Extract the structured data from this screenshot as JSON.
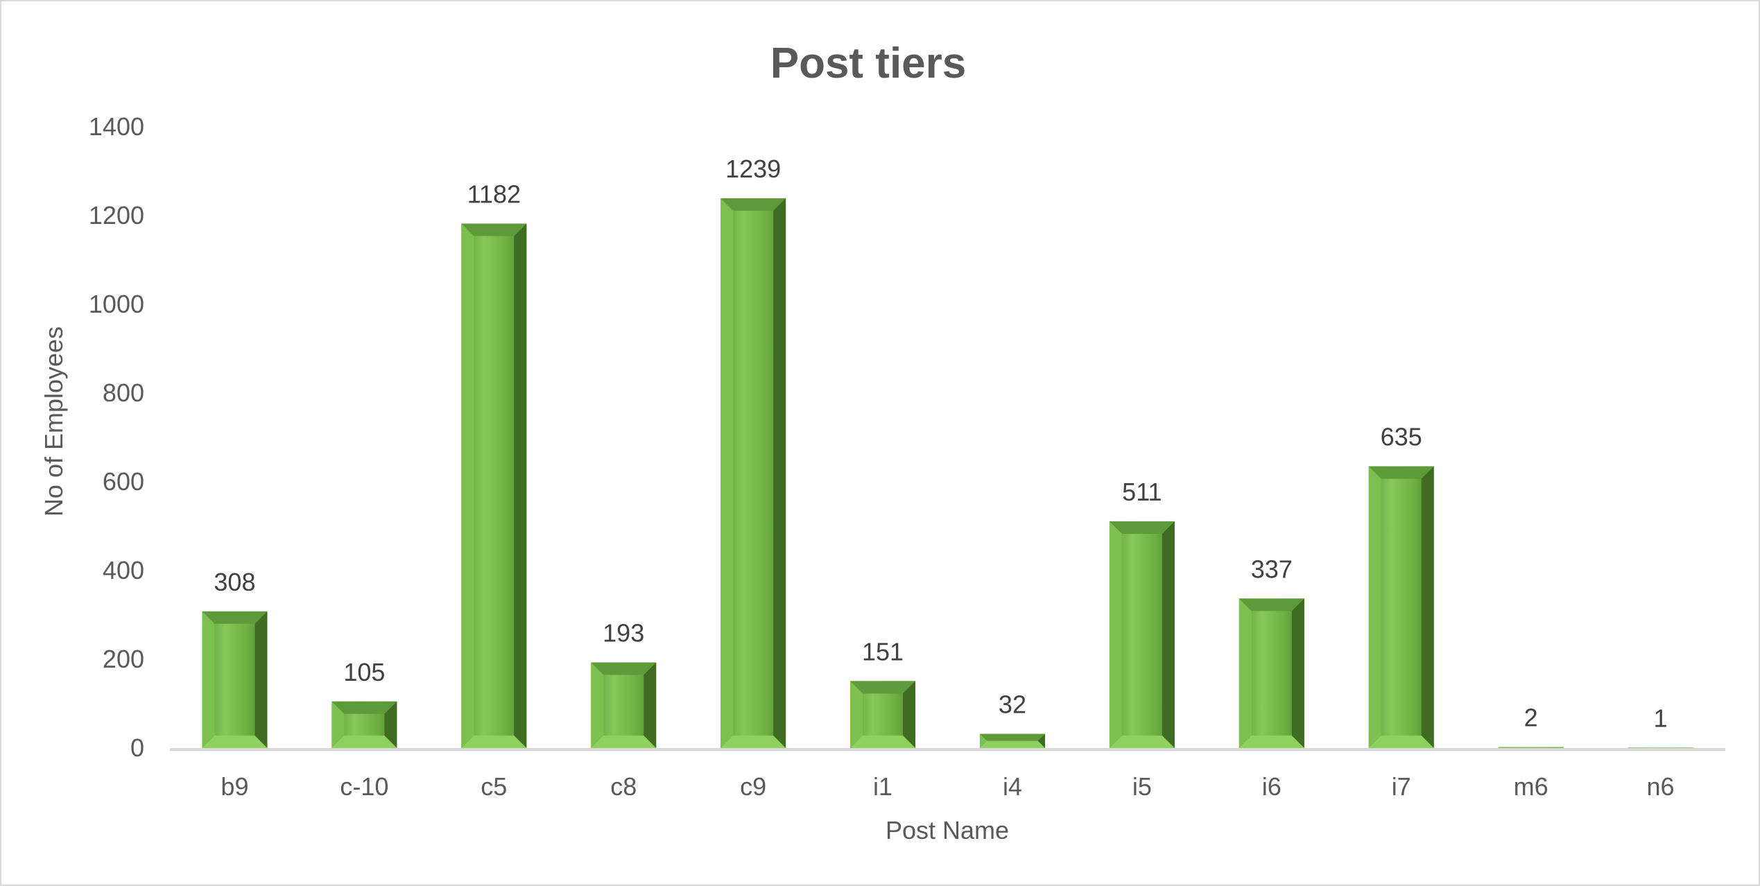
{
  "chart_data": {
    "type": "bar",
    "title": "Post tiers",
    "xlabel": "Post Name",
    "ylabel": "No of Employees",
    "categories": [
      "b9",
      "c-10",
      "c5",
      "c8",
      "c9",
      "i1",
      "i4",
      "i5",
      "i6",
      "i7",
      "m6",
      "n6"
    ],
    "values": [
      308,
      105,
      1182,
      193,
      1239,
      151,
      32,
      511,
      337,
      635,
      2,
      1
    ],
    "ylim": [
      0,
      1400
    ],
    "yticks": [
      0,
      200,
      400,
      600,
      800,
      1000,
      1200,
      1400
    ],
    "grid": false,
    "legend": "none",
    "colors": {
      "bar_face": "#70ad47",
      "bar_light": "#8fd15e",
      "bar_dark": "#3f6b22",
      "bar_top": "#5f9a3a",
      "axis": "#d9d9d9",
      "text": "#595959"
    }
  }
}
